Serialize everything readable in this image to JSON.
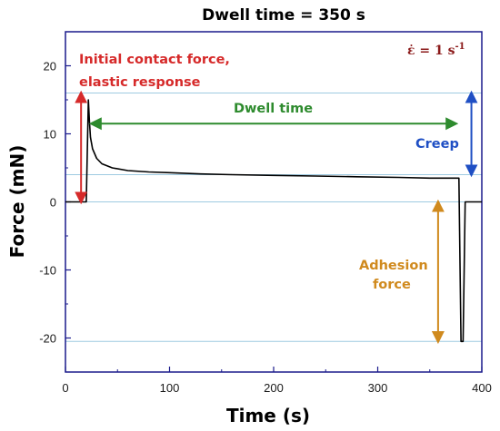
{
  "chart_data": {
    "type": "line",
    "title": "Dwell time = 350 s",
    "xlabel": "Time (s)",
    "ylabel": "Force (mN)",
    "xlim": [
      0,
      400
    ],
    "ylim": [
      -25,
      25
    ],
    "xticks": [
      "0",
      "100",
      "200",
      "300",
      "400"
    ],
    "yticks": [
      "20",
      "10",
      "0",
      "-10",
      "-20"
    ],
    "rate_label": "ε̇ = 1 s",
    "rate_exponent": "-1",
    "reference_lines_y": [
      16,
      4,
      0,
      -20.5
    ],
    "series": [
      {
        "x": [
          0,
          20,
          22,
          23,
          24,
          26,
          30,
          35,
          45,
          60,
          80,
          100,
          130,
          160,
          200,
          240,
          280,
          320,
          350,
          372,
          378,
          380,
          382,
          384,
          400
        ],
        "y": [
          0,
          0,
          15,
          12,
          9.5,
          7.8,
          6.4,
          5.6,
          5.0,
          4.6,
          4.4,
          4.3,
          4.1,
          4.0,
          3.9,
          3.8,
          3.7,
          3.6,
          3.5,
          3.5,
          3.5,
          -20.5,
          -20.5,
          0,
          0
        ],
        "color": "#000000"
      }
    ],
    "annotations": [
      {
        "text": "Initial contact force,",
        "color": "#d62a2a"
      },
      {
        "text": "elastic response",
        "color": "#d62a2a"
      },
      {
        "text": "Dwell time",
        "color": "#2e8b2e"
      },
      {
        "text": "Creep",
        "color": "#1f4fc4"
      },
      {
        "text": "Adhesion",
        "color": "#d08a1e"
      },
      {
        "text": "force",
        "color": "#d08a1e"
      }
    ],
    "arrows": [
      {
        "label": "Initial contact force",
        "x": 15,
        "y_from": 0,
        "y_to": 16,
        "color": "#d62a2a"
      },
      {
        "label": "Dwell time",
        "y": 11.5,
        "x_from": 25,
        "x_to": 375,
        "color": "#2e8b2e"
      },
      {
        "label": "Creep",
        "x": 390,
        "y_from": 16,
        "y_to": 4,
        "color": "#1f4fc4"
      },
      {
        "label": "Adhesion force",
        "x": 358,
        "y_from": 0,
        "y_to": -20.5,
        "color": "#d08a1e"
      }
    ],
    "grid": false,
    "legend": "none",
    "frame_color": "#1a1a8c",
    "reference_line_color": "#9ecae1"
  }
}
